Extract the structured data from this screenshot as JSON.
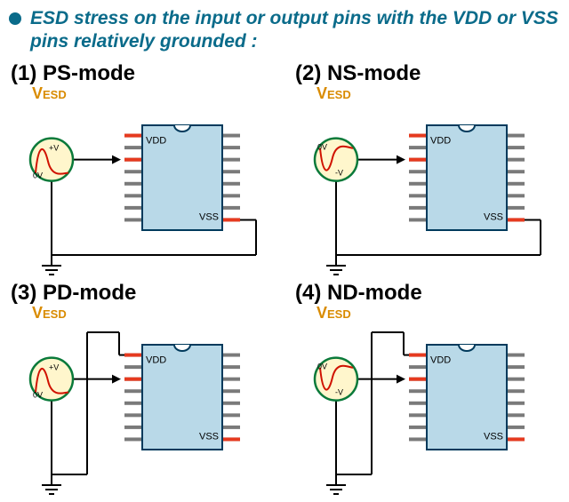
{
  "title": "ESD stress on the input or output pins with the VDD or VSS pins relatively grounded :",
  "title_color": "#0a6b8a",
  "bullet_color": "#0a6b8a",
  "vesd_color": "#d98b00",
  "chip_fill": "#b9d9e8",
  "chip_stroke": "#003a5c",
  "pin_color": "#7a7a7a",
  "red": "#e63a1f",
  "green_stroke": "#0a7a3a",
  "pulse_stroke": "#d01200",
  "wire_color": "#000000",
  "modes": [
    {
      "id": "ps",
      "label": "(1) PS-mode",
      "vesd": "VESD",
      "polarity": "positive",
      "pin_vdd_label": "VDD",
      "pin_vss_label": "VSS",
      "gnd_via": "vss"
    },
    {
      "id": "ns",
      "label": "(2) NS-mode",
      "vesd": "VESD",
      "polarity": "negative",
      "pin_vdd_label": "VDD",
      "pin_vss_label": "VSS",
      "gnd_via": "vss"
    },
    {
      "id": "pd",
      "label": "(3) PD-mode",
      "vesd": "VESD",
      "polarity": "positive",
      "pin_vdd_label": "VDD",
      "pin_vss_label": "VSS",
      "gnd_via": "vdd"
    },
    {
      "id": "nd",
      "label": "(4) ND-mode",
      "vesd": "VESD",
      "polarity": "negative",
      "pin_vdd_label": "VDD",
      "pin_vss_label": "VSS",
      "gnd_via": "vdd"
    }
  ]
}
